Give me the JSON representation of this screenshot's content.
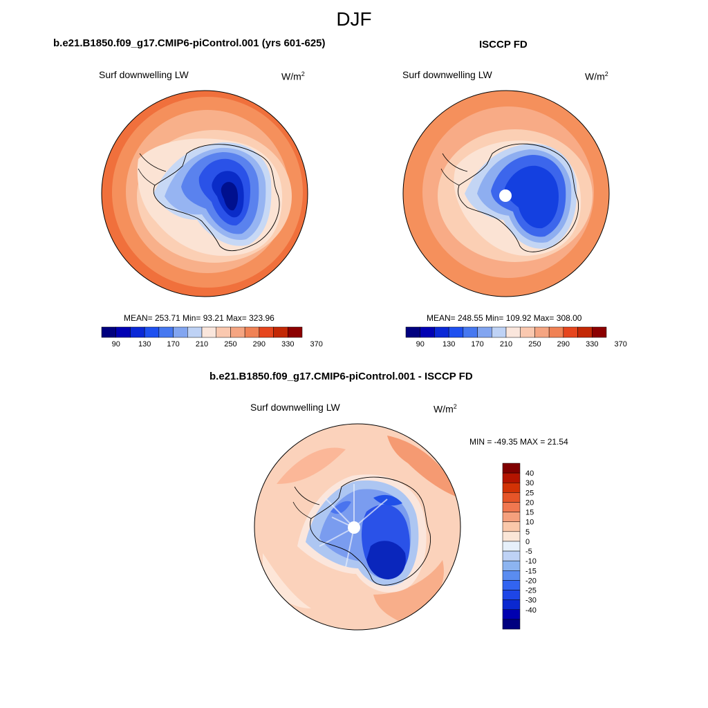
{
  "season": "DJF",
  "panels": [
    {
      "title": "b.e21.B1850.f09_g17.CMIP6-piControl.001 (yrs 601-625)",
      "variable": "Surf downwelling LW",
      "units_base": "W/m",
      "units_exp": "2",
      "stats": "MEAN= 253.71  Min=  93.21  Max= 323.96"
    },
    {
      "title": "ISCCP FD",
      "variable": "Surf downwelling LW",
      "units_base": "W/m",
      "units_exp": "2",
      "stats": "MEAN= 248.55  Min= 109.92  Max= 308.00"
    },
    {
      "title": "b.e21.B1850.f09_g17.CMIP6-piControl.001 - ISCCP FD",
      "variable": "Surf downwelling LW",
      "units_base": "W/m",
      "units_exp": "2",
      "stats": "MIN = -49.35 MAX =  21.54"
    }
  ],
  "main_colorbar": {
    "colors": [
      "#00007f",
      "#0000b3",
      "#0a28d6",
      "#1e50f0",
      "#4678f0",
      "#82a5f0",
      "#bed2f5",
      "#fae6dc",
      "#fac8af",
      "#f5a582",
      "#f08255",
      "#e6461e",
      "#c32805",
      "#8c0000"
    ],
    "tick_labels": [
      "90",
      "130",
      "170",
      "210",
      "250",
      "290",
      "330",
      "370"
    ]
  },
  "diff_colorbar": {
    "colors": [
      "#000080",
      "#0000b0",
      "#0a28d0",
      "#1e46e6",
      "#3264f0",
      "#5a8cf0",
      "#8cb4f0",
      "#bed2f5",
      "#e6f0fa",
      "#fae6d7",
      "#fac8aa",
      "#f5a07d",
      "#f07850",
      "#e65528",
      "#d23205",
      "#b41400",
      "#800000"
    ],
    "labels": [
      "40",
      "30",
      "25",
      "20",
      "15",
      "10",
      "5",
      "0",
      "-5",
      "-10",
      "-15",
      "-20",
      "-25",
      "-30",
      "-40"
    ]
  }
}
